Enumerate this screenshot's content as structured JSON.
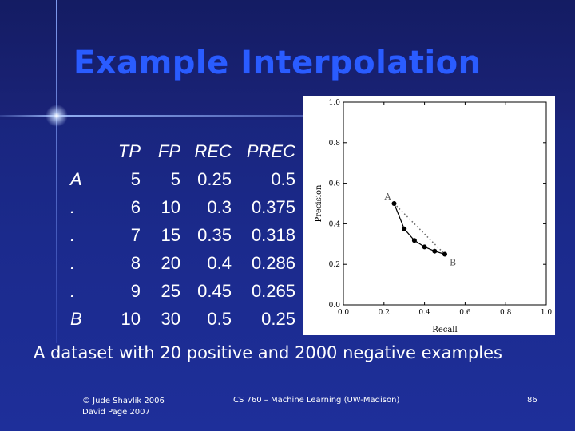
{
  "slide": {
    "title": "Example Interpolation",
    "caption": "A dataset with 20 positive and 2000 negative examples",
    "footer": {
      "left_line1": "© Jude Shavlik 2006",
      "left_line2": "David Page 2007",
      "center": "CS 760 – Machine Learning (UW-Madison)",
      "page": "86"
    },
    "colors": {
      "background": "#1a237e",
      "title": "#2a5cff",
      "text": "#ffffff"
    }
  },
  "chart_data": [
    {
      "type": "table",
      "columns": [
        "",
        "TP",
        "FP",
        "REC",
        "PREC"
      ],
      "rows": [
        [
          "A",
          "5",
          "5",
          "0.25",
          "0.5"
        ],
        [
          ".",
          "6",
          "10",
          "0.3",
          "0.375"
        ],
        [
          ".",
          "7",
          "15",
          "0.35",
          "0.318"
        ],
        [
          ".",
          "8",
          "20",
          "0.4",
          "0.286"
        ],
        [
          ".",
          "9",
          "25",
          "0.45",
          "0.265"
        ],
        [
          "B",
          "10",
          "30",
          "0.5",
          "0.25"
        ]
      ]
    },
    {
      "type": "line",
      "xlabel": "Recall",
      "ylabel": "Precision",
      "xlim": [
        0.0,
        1.0
      ],
      "ylim": [
        0.0,
        1.0
      ],
      "xticks": [
        "0.0",
        "0.2",
        "0.4",
        "0.6",
        "0.8",
        "1.0"
      ],
      "yticks": [
        "0.0",
        "0.2",
        "0.4",
        "0.6",
        "0.8",
        "1.0"
      ],
      "grid": false,
      "series": [
        {
          "style": "solid-with-markers",
          "x": [
            0.25,
            0.3,
            0.35,
            0.4,
            0.45,
            0.5
          ],
          "y": [
            0.5,
            0.375,
            0.318,
            0.286,
            0.265,
            0.25
          ]
        },
        {
          "style": "dotted",
          "x": [
            0.25,
            0.5
          ],
          "y": [
            0.5,
            0.25
          ]
        }
      ],
      "annotations": [
        {
          "text": "A",
          "x": 0.25,
          "y": 0.5
        },
        {
          "text": "B",
          "x": 0.5,
          "y": 0.25
        }
      ]
    }
  ]
}
